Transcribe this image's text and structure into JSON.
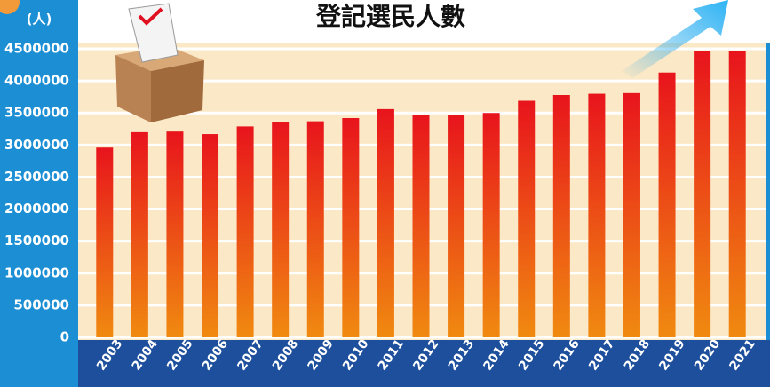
{
  "chart_data": {
    "type": "bar",
    "title": "登記選民人數",
    "y_label": "(人)",
    "categories": [
      "2003",
      "2004",
      "2005",
      "2006",
      "2007",
      "2008",
      "2009",
      "2010",
      "2011",
      "2012",
      "2013",
      "2014",
      "2015",
      "2016",
      "2017",
      "2018",
      "2019",
      "2020",
      "2021"
    ],
    "values": [
      2960000,
      3200000,
      3210000,
      3170000,
      3290000,
      3360000,
      3370000,
      3420000,
      3560000,
      3470000,
      3470000,
      3500000,
      3690000,
      3780000,
      3800000,
      3810000,
      4130000,
      4470000,
      4470000
    ],
    "color": "#e8141c",
    "ylim": [
      0,
      4500000
    ],
    "yticks": [
      0,
      500000,
      1000000,
      1500000,
      2000000,
      2500000,
      3000000,
      3500000,
      4000000,
      4500000
    ],
    "grid": true
  }
}
